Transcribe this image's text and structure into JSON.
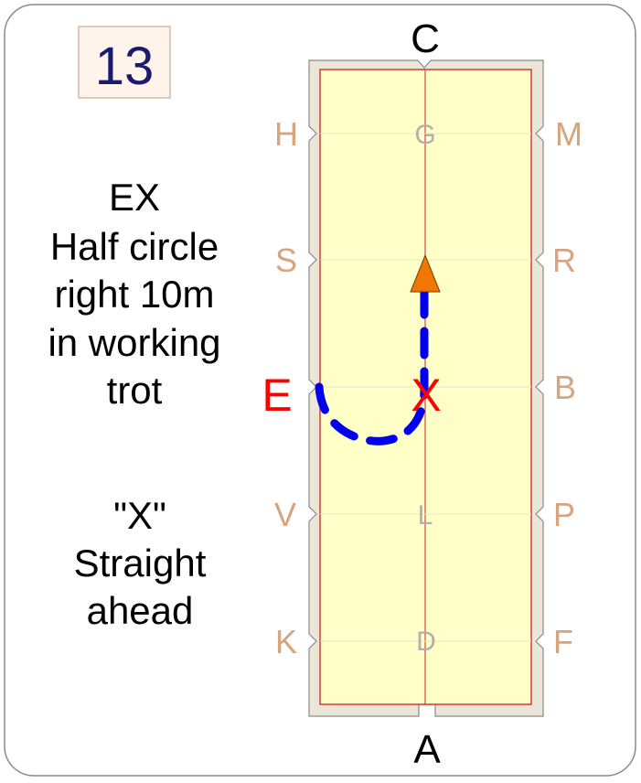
{
  "movement_number": "13",
  "instructions": {
    "block1": [
      "EX",
      "Half circle",
      "right 10m",
      "in working",
      "trot"
    ],
    "block2": [
      "\"X\"",
      "Straight",
      "ahead"
    ]
  },
  "arena": {
    "end_letters": {
      "top": "C",
      "bottom": "A"
    },
    "left_letters": [
      "H",
      "S",
      "E",
      "V",
      "K"
    ],
    "right_letters": [
      "M",
      "R",
      "B",
      "P",
      "F"
    ],
    "center_letters": [
      "G",
      "X",
      "L",
      "D"
    ],
    "highlighted_letters": [
      "E",
      "X"
    ]
  },
  "colors": {
    "arena_fill": "#ffffc8",
    "arena_border": "#d02020",
    "arena_frame": "#ece6d8",
    "side_letter": "#d6a47e",
    "center_letter": "#b0b0b0",
    "highlight": "#ff0000",
    "path": "#0000ee",
    "arrow": "#f07800",
    "number_box_fill": "#fff4ec",
    "number_text": "#1a1a6e"
  }
}
